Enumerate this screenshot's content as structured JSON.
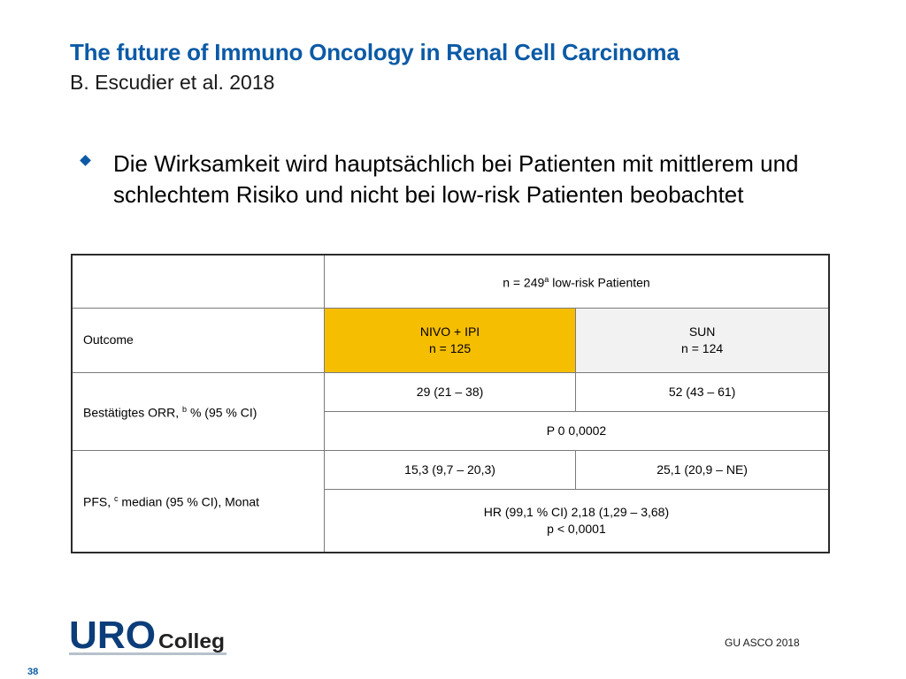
{
  "header": {
    "title": "The future of Immuno Oncology in Renal Cell Carcinoma",
    "subtitle": "B. Escudier et al. 2018"
  },
  "bullet": {
    "text": "Die Wirksamkeit wird hauptsächlich bei Patienten mit mittlerem und schlechtem Risiko und nicht bei low-risk Patienten beobachtet"
  },
  "table": {
    "population": {
      "pre": "n = 249",
      "sup": "a",
      "post": " low-risk Patienten"
    },
    "outcome_label": "Outcome",
    "arm1": {
      "name": "NIVO + IPI",
      "n": "n = 125"
    },
    "arm2": {
      "name": "SUN",
      "n": "n = 124"
    },
    "orr": {
      "label_pre": "Bestätigtes ORR, ",
      "label_sup": "b",
      "label_post": " % (95 % CI)",
      "arm1": "29 (21 – 38)",
      "arm2": "52 (43 – 61)",
      "p": "P 0 0,0002"
    },
    "pfs": {
      "label_pre": "PFS, ",
      "label_sup": "c",
      "label_post": " median (95 % CI), Monat",
      "arm1": "15,3 (9,7 – 20,3)",
      "arm2": "25,1 (20,9 – NE)",
      "hr": "HR (99,1 % CI) 2,18 (1,29 – 3,68)",
      "p": "p < 0,0001"
    }
  },
  "footer": {
    "logo_uro": "URO",
    "logo_colleg": "Colleg",
    "source": "GU ASCO 2018",
    "page_number": "38"
  },
  "colors": {
    "title_blue": "#0b5aa6",
    "nivo_highlight": "#f6be00",
    "sun_bg": "#f2f2f2"
  }
}
